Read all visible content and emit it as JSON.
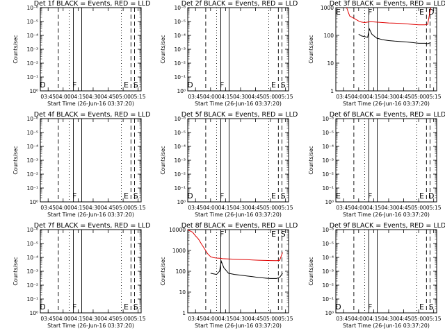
{
  "chart_data": [
    {
      "type": "line",
      "title": "Det 1f BLACK = Events, RED = LLD",
      "xlabel": "Start Time (26-Jun-16 03:37:20)",
      "ylabel": "Counts/sec",
      "xticks": [
        "03:45",
        "04:00",
        "04:15",
        "04:30",
        "04:45",
        "05:00",
        "05:15"
      ],
      "yticks": [
        "10⁰",
        "10⁻¹",
        "10⁻²",
        "10⁻³",
        "10⁻⁴",
        "10⁻⁵",
        "10⁻⁶"
      ],
      "markers": [
        "D",
        "F",
        "E",
        "S"
      ],
      "series": []
    },
    {
      "type": "line",
      "title": "Det 2f BLACK = Events, RED = LLD",
      "xlabel": "Start Time (26-Jun-16 03:37:20)",
      "ylabel": "Counts/sec",
      "xticks": [
        "03:45",
        "04:00",
        "04:15",
        "04:30",
        "04:45",
        "05:00",
        "05:15"
      ],
      "yticks": [
        "10⁰",
        "10⁻¹",
        "10⁻²",
        "10⁻³",
        "10⁻⁴",
        "10⁻⁵",
        "10⁻⁶"
      ],
      "markers": [
        "D",
        "F",
        "E",
        "S"
      ],
      "series": []
    },
    {
      "type": "line",
      "title": "Det 3f BLACK = Events, RED = LLD",
      "xlabel": "Start Time (26-Jun-16 03:37:20)",
      "ylabel": "Counts/sec",
      "xticks": [
        "03:45",
        "04:00",
        "04:15",
        "04:30",
        "04:45",
        "05:00",
        "05:15"
      ],
      "yticks": [
        "1",
        "10",
        "100",
        "1000"
      ],
      "markers": [
        "E",
        "F",
        "E",
        "D"
      ],
      "series": [
        {
          "color": "#e00000",
          "points": [
            [
              3.8,
              1000
            ],
            [
              3.85,
              500
            ],
            [
              3.95,
              380
            ],
            [
              4.0,
              330
            ],
            [
              4.05,
              300
            ],
            [
              4.1,
              290
            ],
            [
              4.15,
              300
            ],
            [
              4.2,
              310
            ],
            [
              4.3,
              300
            ],
            [
              4.4,
              290
            ],
            [
              4.5,
              280
            ],
            [
              4.6,
              275
            ],
            [
              4.7,
              270
            ],
            [
              4.8,
              260
            ],
            [
              4.9,
              250
            ],
            [
              5.0,
              240
            ],
            [
              5.1,
              240
            ],
            [
              5.15,
              250
            ],
            [
              5.2,
              1000
            ]
          ]
        },
        {
          "color": "#000000",
          "points": [
            [
              4.0,
              110
            ],
            [
              4.05,
              95
            ],
            [
              4.1,
              90
            ],
            [
              4.15,
              85
            ],
            [
              4.18,
              170
            ],
            [
              4.22,
              110
            ],
            [
              4.3,
              80
            ],
            [
              4.4,
              70
            ],
            [
              4.5,
              65
            ],
            [
              4.6,
              62
            ],
            [
              4.7,
              60
            ],
            [
              4.8,
              58
            ],
            [
              4.9,
              55
            ],
            [
              5.0,
              52
            ],
            [
              5.1,
              52
            ],
            [
              5.15,
              50
            ],
            [
              5.2,
              55
            ]
          ]
        }
      ]
    },
    {
      "type": "line",
      "title": "Det 4f BLACK = Events, RED = LLD",
      "xlabel": "Start Time (26-Jun-16 03:37:20)",
      "ylabel": "Counts/sec",
      "xticks": [
        "03:45",
        "04:00",
        "04:15",
        "04:30",
        "04:45",
        "05:00",
        "05:15"
      ],
      "yticks": [
        "10⁰",
        "10⁻¹",
        "10⁻²",
        "10⁻³",
        "10⁻⁴",
        "10⁻⁵",
        "10⁻⁶"
      ],
      "markers": [
        "",
        "F",
        "E",
        "S"
      ],
      "series": []
    },
    {
      "type": "line",
      "title": "Det 5f BLACK = Events, RED = LLD",
      "xlabel": "Start Time (26-Jun-16 03:37:20)",
      "ylabel": "Counts/sec",
      "xticks": [
        "03:45",
        "04:00",
        "04:15",
        "04:30",
        "04:45",
        "05:00",
        "05:15"
      ],
      "yticks": [
        "10⁰",
        "10⁻¹",
        "10⁻²",
        "10⁻³",
        "10⁻⁴",
        "10⁻⁵",
        "10⁻⁶"
      ],
      "markers": [
        "D",
        "F",
        "E",
        "S"
      ],
      "series": []
    },
    {
      "type": "line",
      "title": "Det 6f BLACK = Events, RED = LLD",
      "xlabel": "Start Time (26-Jun-16 03:37:20)",
      "ylabel": "Counts/sec",
      "xticks": [
        "03:45",
        "04:00",
        "04:15",
        "04:30",
        "04:45",
        "05:00",
        "05:15"
      ],
      "yticks": [
        "10⁰",
        "10⁻¹",
        "10⁻²",
        "10⁻³",
        "10⁻⁴",
        "10⁻⁵",
        "10⁻⁶"
      ],
      "markers": [
        "E",
        "F",
        "E",
        "D"
      ],
      "series": []
    },
    {
      "type": "line",
      "title": "Det 7f BLACK = Events, RED = LLD",
      "xlabel": "Start Time (26-Jun-16 03:37:20)",
      "ylabel": "Counts/sec",
      "xticks": [
        "03:45",
        "04:00",
        "04:15",
        "04:30",
        "04:45",
        "05:00",
        "05:15"
      ],
      "yticks": [
        "10⁰",
        "10⁻¹",
        "10⁻²",
        "10⁻³",
        "10⁻⁴",
        "10⁻⁵",
        "10⁻⁶"
      ],
      "markers": [
        "D",
        "F",
        "E",
        "S"
      ],
      "series": []
    },
    {
      "type": "line",
      "title": "Det 8f BLACK = Events, RED = LLD",
      "xlabel": "Start Time (26-Jun-16 03:37:20)",
      "ylabel": "Counts/sec",
      "xticks": [
        "03:45",
        "04:00",
        "04:15",
        "04:30",
        "04:45",
        "05:00",
        "05:15"
      ],
      "yticks": [
        "1",
        "10",
        "100",
        "1000",
        "10000"
      ],
      "markers": [
        "",
        "F",
        "E",
        "S"
      ],
      "series": [
        {
          "color": "#e00000",
          "points": [
            [
              3.62,
              10000
            ],
            [
              3.65,
              9000
            ],
            [
              3.7,
              7500
            ],
            [
              3.75,
              5000
            ],
            [
              3.8,
              3500
            ],
            [
              3.85,
              2000
            ],
            [
              3.9,
              1200
            ],
            [
              3.95,
              700
            ],
            [
              4.0,
              500
            ],
            [
              4.05,
              450
            ],
            [
              4.1,
              430
            ],
            [
              4.15,
              420
            ],
            [
              4.2,
              400
            ],
            [
              4.3,
              390
            ],
            [
              4.4,
              380
            ],
            [
              4.5,
              370
            ],
            [
              4.6,
              360
            ],
            [
              4.7,
              350
            ],
            [
              4.8,
              340
            ],
            [
              4.9,
              330
            ],
            [
              5.0,
              325
            ],
            [
              5.1,
              320
            ],
            [
              5.15,
              330
            ],
            [
              5.2,
              800
            ]
          ]
        },
        {
          "color": "#000000",
          "points": [
            [
              4.0,
              80
            ],
            [
              4.05,
              75
            ],
            [
              4.1,
              70
            ],
            [
              4.15,
              100
            ],
            [
              4.18,
              300
            ],
            [
              4.22,
              150
            ],
            [
              4.3,
              80
            ],
            [
              4.4,
              70
            ],
            [
              4.5,
              65
            ],
            [
              4.6,
              60
            ],
            [
              4.7,
              55
            ],
            [
              4.8,
              50
            ],
            [
              4.9,
              47
            ],
            [
              5.0,
              45
            ],
            [
              5.1,
              45
            ],
            [
              5.15,
              50
            ],
            [
              5.2,
              80
            ]
          ]
        }
      ]
    },
    {
      "type": "line",
      "title": "Det 9f BLACK = Events, RED = LLD",
      "xlabel": "Start Time (26-Jun-16 03:37:20)",
      "ylabel": "Counts/sec",
      "xticks": [
        "03:45",
        "04:00",
        "04:15",
        "04:30",
        "04:45",
        "05:00",
        "05:15"
      ],
      "yticks": [
        "10⁰",
        "10⁻¹",
        "10⁻²",
        "10⁻³",
        "10⁻⁴",
        "10⁻⁵",
        "10⁻⁶"
      ],
      "markers": [
        "D",
        "F",
        "E",
        "S"
      ],
      "series": []
    }
  ]
}
